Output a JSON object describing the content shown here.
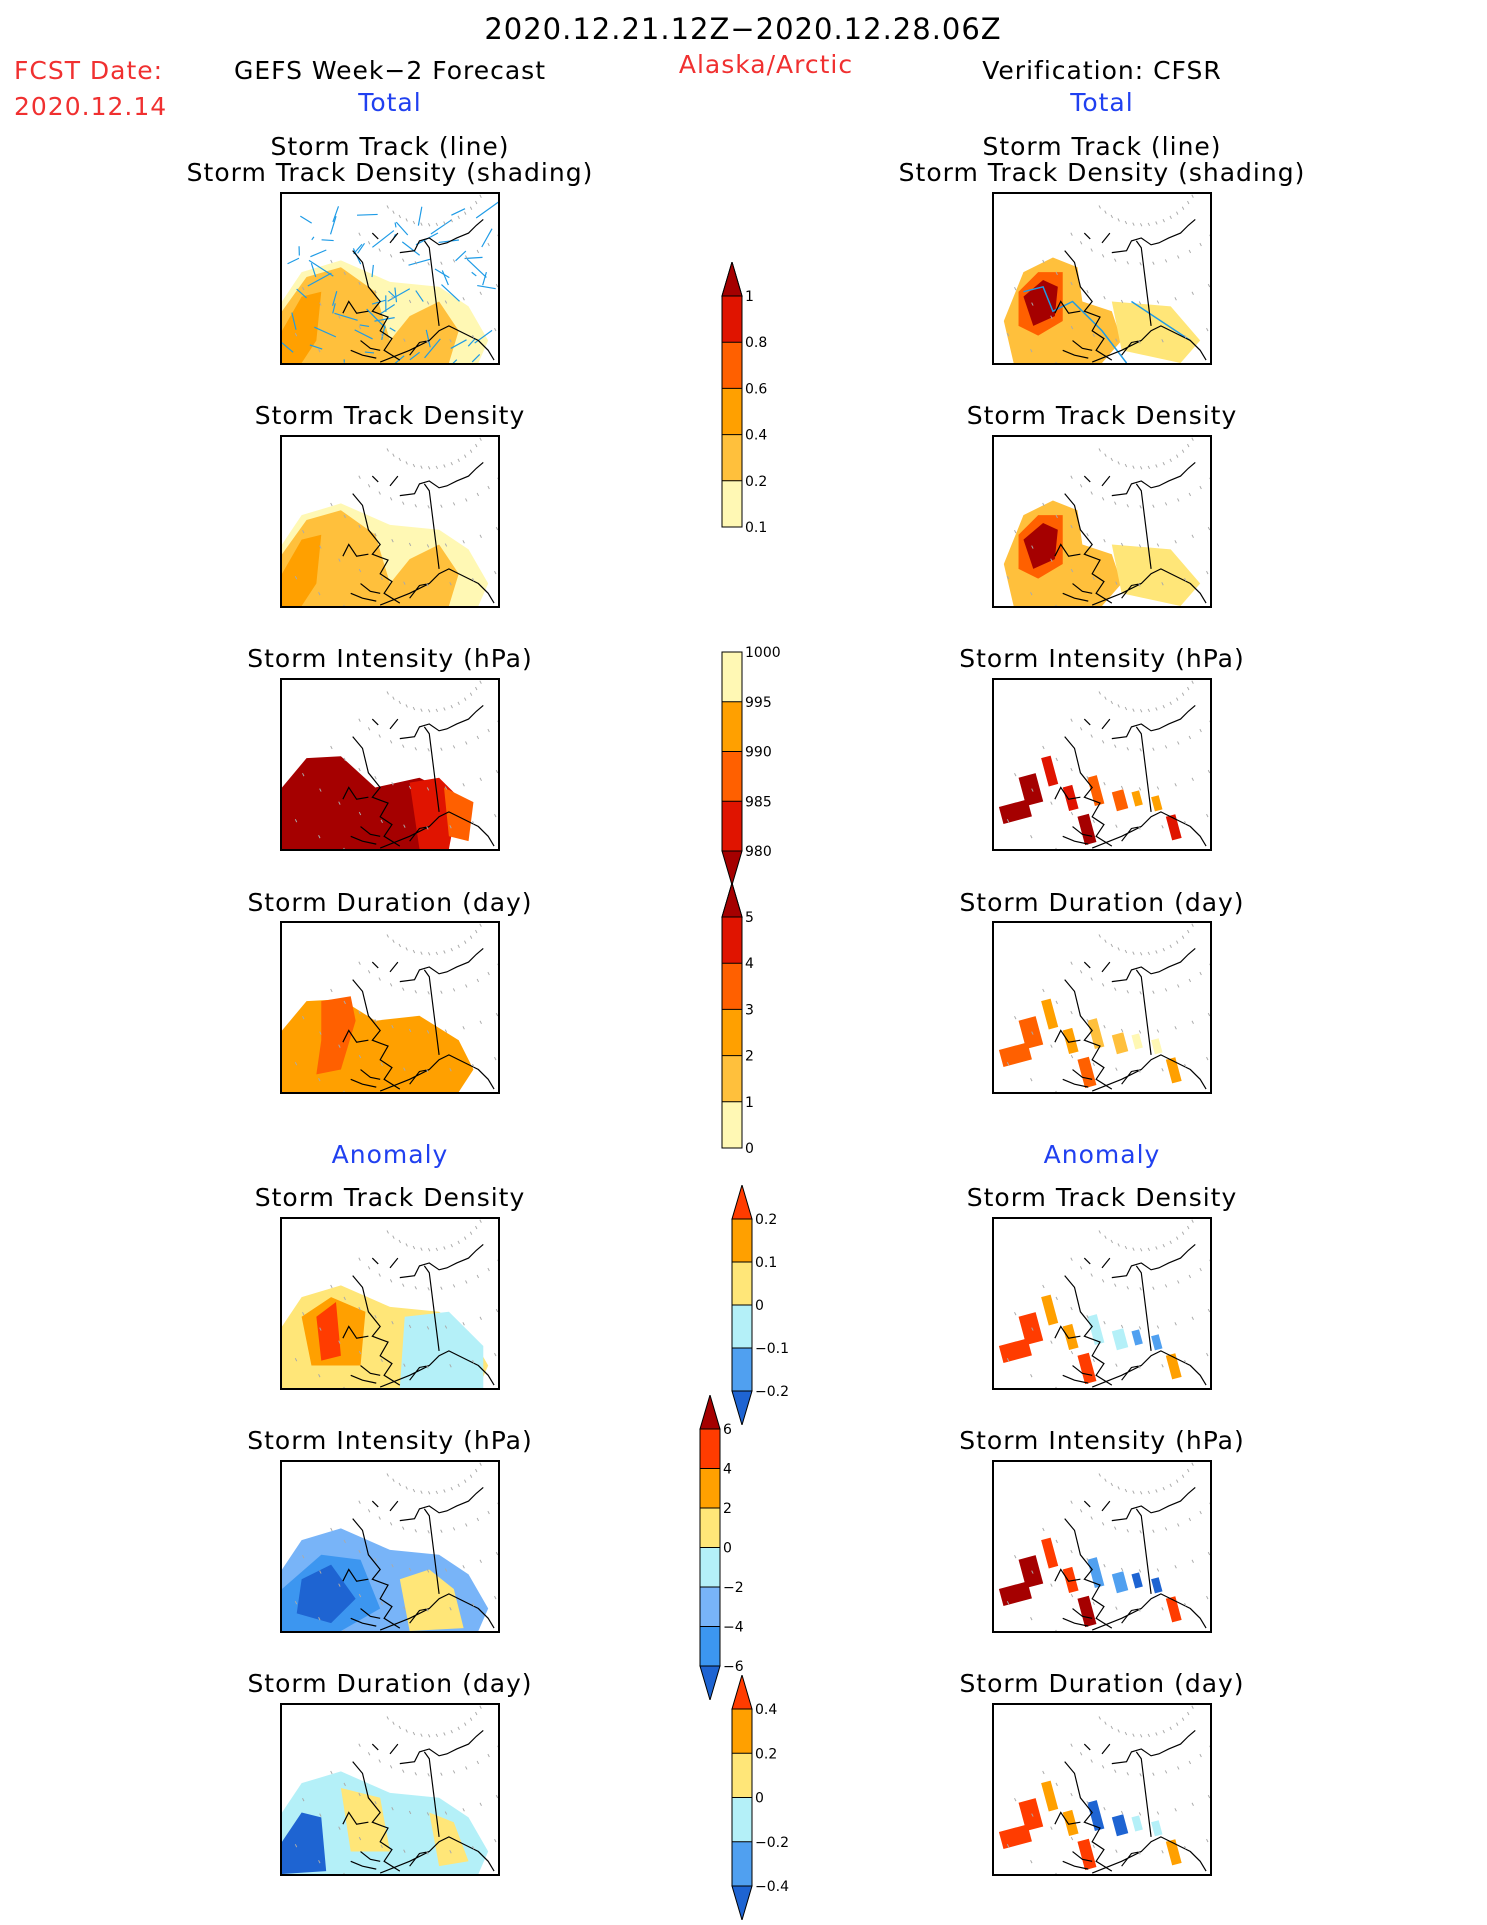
{
  "header": {
    "period": "2020.12.21.12Z−2020.12.28.06Z",
    "fcst_label": "FCST Date:",
    "fcst_date": "2020.12.14",
    "region": "Alaska/Arctic",
    "left_title": "GEFS Week−2 Forecast",
    "right_title": "Verification: CFSR",
    "total_label": "Total",
    "anomaly_label": "Anomaly"
  },
  "panels": {
    "track_line": "Storm Track (line)",
    "track_density_shading": "Storm Track Density (shading)",
    "track_density": "Storm Track Density",
    "intensity": "Storm Intensity (hPa)",
    "duration": "Storm Duration (day)"
  },
  "colors": {
    "title_red": "#f03030",
    "label_blue": "#2040f0",
    "track_line": "#1e9be6"
  },
  "chart_data": [
    {
      "type": "heatmap",
      "title": "Storm Track Density (Total)",
      "colorbar": {
        "levels": [
          "0.1",
          "0.2",
          "0.4",
          "0.6",
          "0.8",
          "1"
        ],
        "colors": [
          "#fff8b4",
          "#ffc03c",
          "#ffa000",
          "#ff6000",
          "#e01400",
          "#a50000"
        ],
        "extend": "max"
      }
    },
    {
      "type": "heatmap",
      "title": "Storm Intensity (hPa) (Total)",
      "colorbar": {
        "levels": [
          "1000",
          "995",
          "990",
          "985",
          "980"
        ],
        "colors": [
          "#fff8b4",
          "#ffa000",
          "#ff6000",
          "#e01400",
          "#a50000"
        ],
        "extend": "min"
      }
    },
    {
      "type": "heatmap",
      "title": "Storm Duration (day) (Total)",
      "colorbar": {
        "levels": [
          "0",
          "1",
          "2",
          "3",
          "4",
          "5"
        ],
        "colors": [
          "#fff8b4",
          "#ffc03c",
          "#ffa000",
          "#ff6000",
          "#e01400",
          "#a50000"
        ],
        "extend": "max"
      }
    },
    {
      "type": "heatmap",
      "title": "Storm Track Density (Anomaly)",
      "colorbar": {
        "levels": [
          "0.2",
          "0.1",
          "0",
          "−0.1",
          "−0.2"
        ],
        "colors": [
          "#ff3c00",
          "#ffa000",
          "#ffe678",
          "#b4f0f8",
          "#50a0f0",
          "#1e64d2"
        ],
        "extend": "both"
      }
    },
    {
      "type": "heatmap",
      "title": "Storm Intensity (hPa) (Anomaly)",
      "colorbar": {
        "levels": [
          "6",
          "4",
          "2",
          "0",
          "−2",
          "−4",
          "−6"
        ],
        "colors": [
          "#a50000",
          "#ff3c00",
          "#ffa000",
          "#ffe678",
          "#b4f0f8",
          "#78b4f8",
          "#3c96f0",
          "#1e64d2"
        ],
        "extend": "both"
      }
    },
    {
      "type": "heatmap",
      "title": "Storm Duration (day) (Anomaly)",
      "colorbar": {
        "levels": [
          "0.4",
          "0.2",
          "0",
          "−0.2",
          "−0.4"
        ],
        "colors": [
          "#ff3c00",
          "#ffa000",
          "#ffe678",
          "#b4f0f8",
          "#50a0f0",
          "#1e64d2"
        ],
        "extend": "both"
      }
    }
  ]
}
